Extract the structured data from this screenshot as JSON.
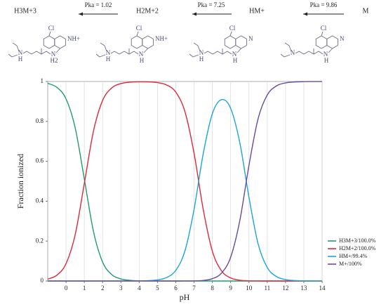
{
  "header": {
    "species": [
      "H3M+3",
      "H2M+2",
      "HM+",
      "M"
    ],
    "pka_labels": [
      "Pka = 1.02",
      "Pka = 7.25",
      "Pka = 9.86"
    ],
    "structures": [
      {
        "chlorine": "Cl",
        "ring_n": "NH+",
        "amine_n": "N",
        "amine_h": "H2",
        "tertiary_n": "N",
        "tertiary_h": "H"
      },
      {
        "chlorine": "Cl",
        "ring_n": "NH+",
        "amine_n": "N",
        "amine_h": "H",
        "tertiary_n": "N",
        "tertiary_h": "H"
      },
      {
        "chlorine": "Cl",
        "ring_n": "N",
        "amine_n": "N",
        "amine_h": "H",
        "tertiary_n": "N",
        "tertiary_h": "H"
      },
      {
        "chlorine": "Cl",
        "ring_n": "N",
        "amine_n": "N",
        "amine_h": "H",
        "tertiary_n": "N"
      }
    ]
  },
  "chart_data": {
    "type": "line",
    "xlabel": "pH",
    "ylabel": "Fraction ionized",
    "x": [
      -1,
      -0.5,
      0,
      0.5,
      1,
      1.5,
      2,
      2.5,
      3,
      3.5,
      4,
      4.5,
      5,
      5.5,
      6,
      6.5,
      7,
      7.5,
      8,
      8.5,
      9,
      9.5,
      10,
      10.5,
      11,
      11.5,
      12,
      12.5,
      13,
      13.5,
      14
    ],
    "series": [
      {
        "name": "H3M+3/100.0%",
        "color": "#1e9e6a",
        "values": [
          0.9905,
          0.9707,
          0.9128,
          0.768,
          0.5115,
          0.2488,
          0.0948,
          0.0321,
          0.0104,
          0.0033,
          0.001,
          0.0003,
          0.0001,
          0,
          0,
          0,
          0,
          0,
          0,
          0,
          0,
          0,
          0,
          0,
          0,
          0,
          0,
          0,
          0,
          0,
          0
        ]
      },
      {
        "name": "H2M+2/100.0%",
        "color": "#e0283a",
        "values": [
          0.0095,
          0.0293,
          0.0872,
          0.232,
          0.4885,
          0.7512,
          0.9052,
          0.9679,
          0.9895,
          0.9966,
          0.9984,
          0.9979,
          0.9943,
          0.9825,
          0.9468,
          0.849,
          0.6399,
          0.359,
          0.149,
          0.0511,
          0.0154,
          0.0039,
          0.0007,
          0.0001,
          0,
          0,
          0,
          0,
          0,
          0,
          0
        ]
      },
      {
        "name": "HM+/99.4%",
        "color": "#1ba6d6",
        "values": [
          0,
          0,
          0,
          0,
          0,
          0,
          0,
          0,
          0.0001,
          0.0002,
          0.0006,
          0.0018,
          0.0056,
          0.0175,
          0.0532,
          0.151,
          0.3598,
          0.638,
          0.839,
          0.909,
          0.865,
          0.6934,
          0.4199,
          0.1863,
          0.0676,
          0.0224,
          0.0072,
          0.0023,
          0.0007,
          0.0002,
          0.0001
        ]
      },
      {
        "name": "M+/100%",
        "color": "#6a4a9e",
        "values": [
          0,
          0,
          0,
          0,
          0,
          0,
          0,
          0,
          0,
          0,
          0,
          0,
          0,
          0,
          0,
          0.0001,
          0.0005,
          0.0028,
          0.0116,
          0.0397,
          0.1194,
          0.3027,
          0.5794,
          0.8136,
          0.9324,
          0.9776,
          0.9928,
          0.9977,
          0.9993,
          0.9998,
          0.9999
        ]
      }
    ],
    "xlim": [
      -1,
      14
    ],
    "ylim": [
      0,
      1
    ],
    "xticks": [
      0,
      1,
      2,
      3,
      4,
      5,
      6,
      7,
      8,
      9,
      10,
      11,
      12,
      13,
      14
    ],
    "yticks": [
      0,
      0.2,
      0.4,
      0.6,
      0.8,
      1
    ],
    "grid": true,
    "legend": "right"
  }
}
